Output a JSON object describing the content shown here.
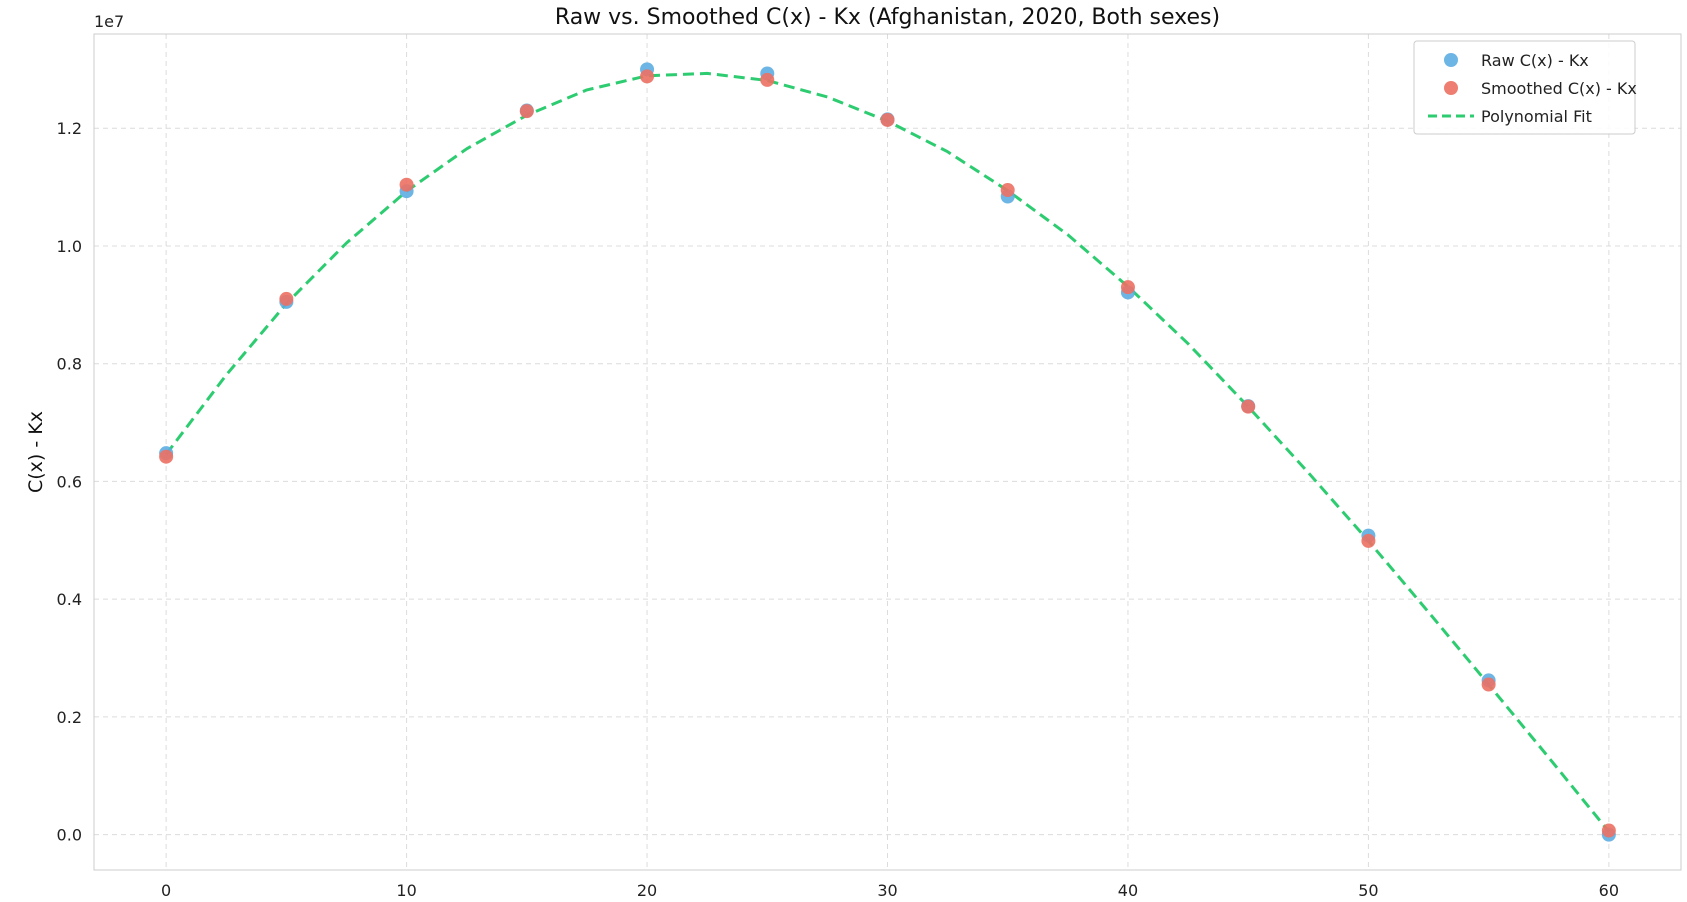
{
  "chart_data": {
    "type": "scatter",
    "title": "Raw vs. Smoothed C(x) - Kx (Afghanistan, 2020, Both sexes)",
    "xlabel": "",
    "ylabel": "C(x) - Kx",
    "y_offset_label": "1e7",
    "xlim": [
      -3,
      63
    ],
    "ylim": [
      -0.06,
      1.36
    ],
    "x_ticks": [
      0,
      10,
      20,
      30,
      40,
      50,
      60
    ],
    "x_tick_labels": [
      "0",
      "10",
      "20",
      "30",
      "40",
      "50",
      "60"
    ],
    "y_ticks": [
      0.0,
      0.2,
      0.4,
      0.6,
      0.8,
      1.0,
      1.2
    ],
    "y_tick_labels": [
      "0.0",
      "0.2",
      "0.4",
      "0.6",
      "0.8",
      "1.0",
      "1.2"
    ],
    "grid": true,
    "legend_position": "top-right",
    "series": [
      {
        "name": "Raw C(x) - Kx",
        "kind": "scatter",
        "color": "#5dade2",
        "x": [
          0,
          5,
          10,
          15,
          20,
          25,
          30,
          35,
          40,
          45,
          50,
          55,
          60
        ],
        "y": [
          0.648,
          0.905,
          1.093,
          1.23,
          1.3,
          1.293,
          1.215,
          1.084,
          0.921,
          0.728,
          0.508,
          0.262,
          0.0
        ]
      },
      {
        "name": "Smoothed C(x) - Kx",
        "kind": "scatter",
        "color": "#ec7063",
        "x": [
          0,
          5,
          10,
          15,
          20,
          25,
          30,
          35,
          40,
          45,
          50,
          55,
          60
        ],
        "y": [
          0.642,
          0.91,
          1.104,
          1.229,
          1.288,
          1.282,
          1.214,
          1.095,
          0.93,
          0.727,
          0.499,
          0.255,
          0.007
        ]
      },
      {
        "name": "Polynomial Fit",
        "kind": "line",
        "color": "#2ecc71",
        "line_style": "dashed",
        "x": [
          0,
          2.5,
          5,
          7.5,
          10,
          12.5,
          15,
          17.5,
          20,
          22.5,
          25,
          27.5,
          30,
          32.5,
          35,
          37.5,
          40,
          42.5,
          45,
          47.5,
          50,
          52.5,
          55,
          57.5,
          60
        ],
        "y": [
          0.646,
          0.781,
          0.902,
          1.005,
          1.093,
          1.165,
          1.222,
          1.265,
          1.289,
          1.293,
          1.281,
          1.253,
          1.212,
          1.16,
          1.094,
          1.019,
          0.931,
          0.834,
          0.727,
          0.615,
          0.499,
          0.378,
          0.255,
          0.131,
          0.005
        ]
      }
    ]
  }
}
